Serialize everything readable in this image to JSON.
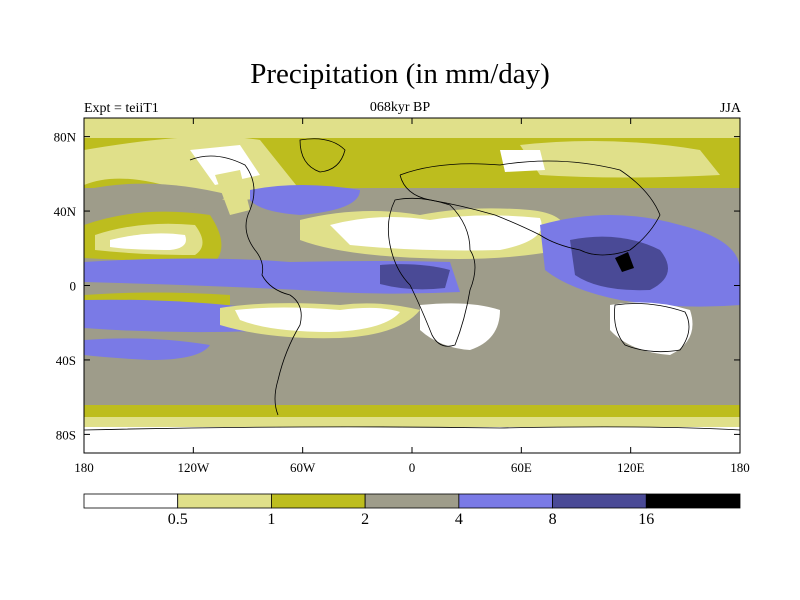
{
  "title": "Precipitation (in mm/day)",
  "subtitle": "068kyr BP",
  "left_label": "Expt = teiiT1",
  "right_label": "JJA",
  "axes": {
    "x_ticks": [
      "180",
      "120W",
      "60W",
      "0",
      "60E",
      "120E",
      "180"
    ],
    "y_ticks": [
      "80N",
      "40N",
      "0",
      "40S",
      "80S"
    ]
  },
  "colorbar": {
    "thresholds": [
      "0.5",
      "1",
      "2",
      "4",
      "8",
      "16"
    ],
    "colors": [
      "#ffffff",
      "#e0e08a",
      "#bdbd1e",
      "#9e9c8a",
      "#7a7ae6",
      "#4a4a96",
      "#000000"
    ]
  }
}
